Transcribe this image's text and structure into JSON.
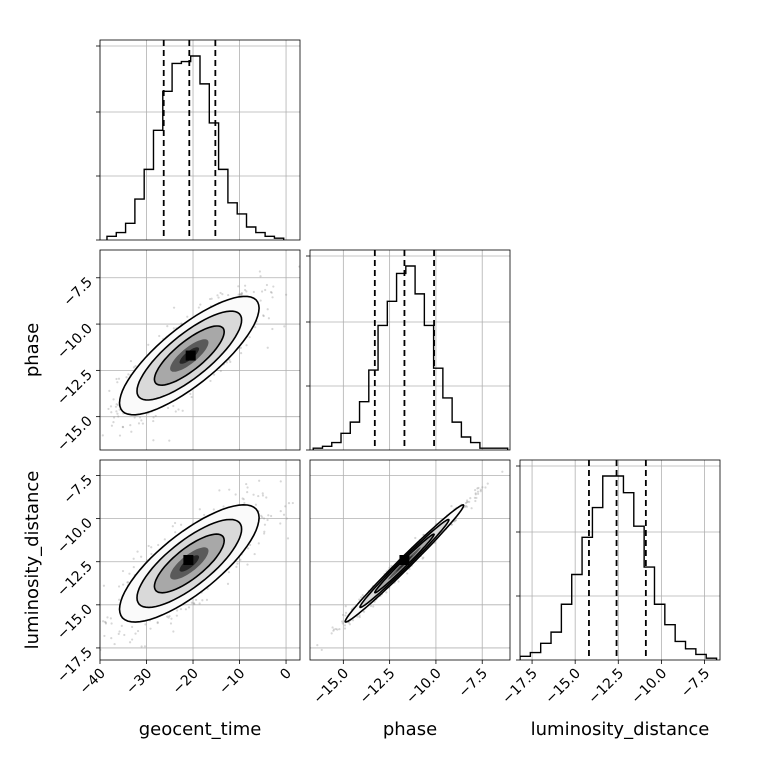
{
  "chart_data": {
    "type": "corner",
    "parameters": [
      "geocent_time",
      "phase",
      "luminosity_distance"
    ],
    "axis_labels": {
      "x": [
        "geocent_time",
        "phase",
        "luminosity_distance"
      ],
      "y": [
        "",
        "phase",
        "luminosity_distance"
      ]
    },
    "ranges": {
      "geocent_time": [
        -40,
        3
      ],
      "phase": [
        -16.8,
        -6.0
      ],
      "luminosity_distance": [
        -18.2,
        -6.6
      ]
    },
    "ticks": {
      "geocent_time": [
        -40,
        -30,
        -20,
        -10,
        0
      ],
      "phase": [
        -15.0,
        -12.5,
        -10.0,
        -7.5
      ],
      "luminosity_distance": [
        -17.5,
        -15.0,
        -12.5,
        -10.0,
        -7.5
      ]
    },
    "tick_labels": {
      "geocent_time": [
        "−40",
        "−30",
        "−20",
        "−10",
        "0"
      ],
      "phase": [
        "−15.0",
        "−12.5",
        "−10.0",
        "−7.5"
      ],
      "luminosity_distance": [
        "−17.5",
        "−15.0",
        "−12.5",
        "−10.0",
        "−7.5"
      ]
    },
    "quantiles": {
      "geocent_time": [
        -26.3,
        -20.8,
        -15.2
      ],
      "phase": [
        -13.3,
        -11.7,
        -10.1
      ],
      "luminosity_distance": [
        -14.2,
        -12.6,
        -10.9
      ]
    },
    "histograms": {
      "geocent_time": {
        "bins": [
          -37.5,
          -35.5,
          -33.5,
          -31.5,
          -29.5,
          -27.5,
          -25.5,
          -23.5,
          -21.5,
          -19.5,
          -17.5,
          -15.5,
          -13.5,
          -11.5,
          -9.5,
          -7.5,
          -5.5,
          -3.5,
          -1.5
        ],
        "counts": [
          0.02,
          0.04,
          0.09,
          0.22,
          0.38,
          0.59,
          0.8,
          0.95,
          0.96,
          0.99,
          0.84,
          0.63,
          0.38,
          0.2,
          0.14,
          0.07,
          0.04,
          0.02,
          0.01
        ]
      },
      "phase": {
        "bins": [
          -16.375,
          -15.875,
          -15.375,
          -14.875,
          -14.375,
          -13.875,
          -13.375,
          -12.875,
          -12.375,
          -11.875,
          -11.375,
          -10.875,
          -10.375,
          -9.875,
          -9.375,
          -8.875,
          -8.375,
          -7.875,
          -7.375,
          -6.875,
          -6.375
        ],
        "counts": [
          0.01,
          0.02,
          0.04,
          0.09,
          0.15,
          0.26,
          0.43,
          0.67,
          0.8,
          0.95,
          0.99,
          0.84,
          0.67,
          0.44,
          0.28,
          0.15,
          0.07,
          0.04,
          0.01,
          0.01,
          0.01
        ]
      },
      "luminosity_distance": {
        "bins": [
          -17.9,
          -17.3,
          -16.7,
          -16.1,
          -15.5,
          -14.9,
          -14.3,
          -13.7,
          -13.1,
          -12.5,
          -11.9,
          -11.3,
          -10.7,
          -10.1,
          -9.5,
          -8.9,
          -8.3,
          -7.7,
          -7.1
        ],
        "counts": [
          0.02,
          0.04,
          0.09,
          0.15,
          0.3,
          0.46,
          0.66,
          0.82,
          0.99,
          0.99,
          0.9,
          0.72,
          0.5,
          0.3,
          0.19,
          0.1,
          0.06,
          0.03,
          0.01
        ]
      }
    },
    "pairs": [
      {
        "x": "geocent_time",
        "y": "phase",
        "mean": [
          -20.8,
          -11.7
        ],
        "sd": [
          7.5,
          1.6
        ],
        "rho": 0.8,
        "peak": [
          -20.5,
          -11.7
        ]
      },
      {
        "x": "geocent_time",
        "y": "luminosity_distance",
        "mean": [
          -20.8,
          -12.6
        ],
        "sd": [
          7.5,
          1.7
        ],
        "rho": 0.78,
        "peak": [
          -21.0,
          -12.4
        ]
      },
      {
        "x": "phase",
        "y": "luminosity_distance",
        "mean": [
          -11.7,
          -12.6
        ],
        "sd": [
          1.6,
          1.7
        ],
        "rho": 0.99,
        "peak": [
          -11.7,
          -12.4
        ]
      }
    ],
    "contour_levels_sigma": [
      1.0,
      1.5,
      2.0
    ],
    "grid": true
  }
}
